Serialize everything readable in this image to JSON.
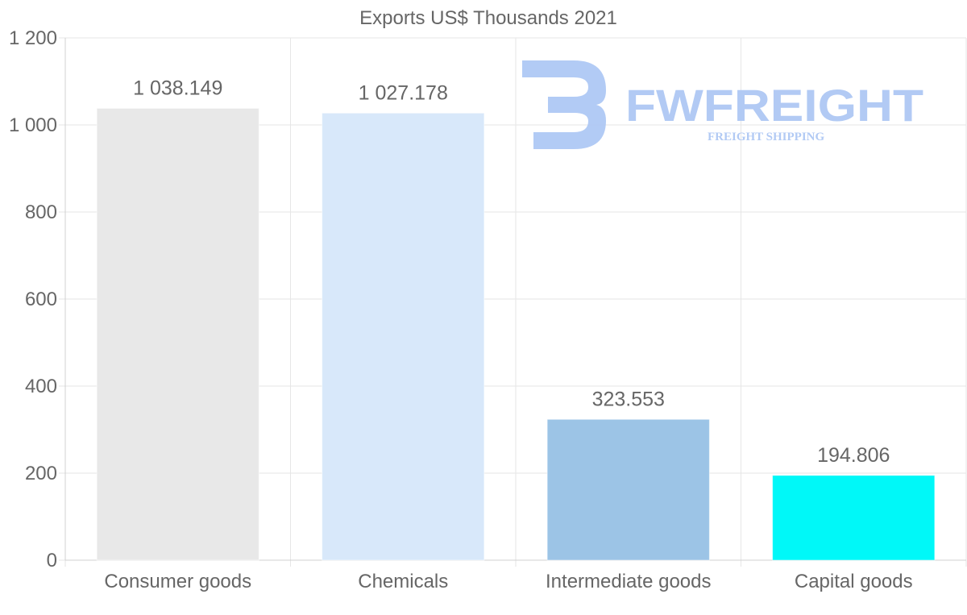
{
  "chart_data": {
    "type": "bar",
    "title": "Exports US$ Thousands 2021",
    "categories": [
      "Consumer goods",
      "Chemicals",
      "Intermediate goods",
      "Capital goods"
    ],
    "values": [
      1038.149,
      1027.178,
      323.553,
      194.806
    ],
    "value_labels": [
      "1 038.149",
      "1 027.178",
      "323.553",
      "194.806"
    ],
    "colors": [
      "#e8e8e8",
      "#d8e8fa",
      "#9cc4e6",
      "#00f8f8"
    ],
    "ylim": [
      0,
      1200
    ],
    "yticks": [
      0,
      200,
      400,
      600,
      800,
      1000,
      1200
    ],
    "ytick_labels": [
      "0",
      "200",
      "400",
      "600",
      "800",
      "1 000",
      "1 200"
    ],
    "xlabel": "",
    "ylabel": "",
    "grid": true,
    "legend": "none"
  },
  "watermark": {
    "brand": "FWFREIGHT",
    "tagline": "FREIGHT SHIPPING"
  }
}
